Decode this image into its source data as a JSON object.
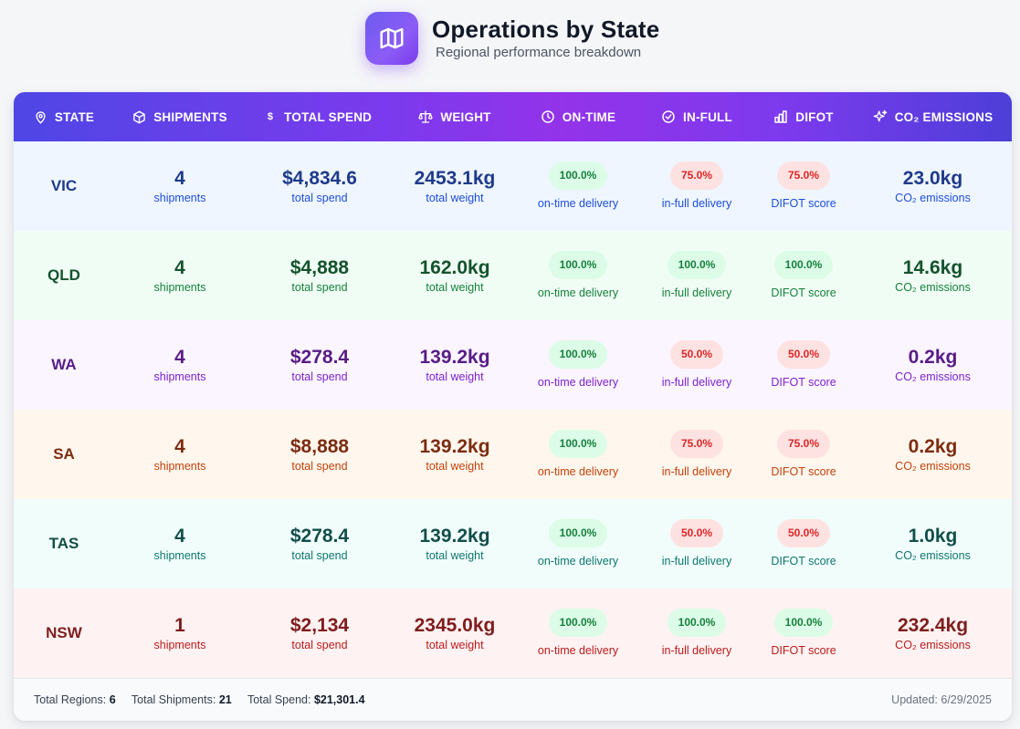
{
  "header": {
    "title": "Operations by State",
    "subtitle": "Regional performance breakdown",
    "logo_icon": "map-icon"
  },
  "columns": [
    {
      "label": "STATE",
      "icon": "map-pin-icon"
    },
    {
      "label": "SHIPMENTS",
      "icon": "package-icon"
    },
    {
      "label": "TOTAL SPEND",
      "icon": "dollar-icon"
    },
    {
      "label": "WEIGHT",
      "icon": "scale-icon"
    },
    {
      "label": "ON-TIME",
      "icon": "clock-icon"
    },
    {
      "label": "IN-FULL",
      "icon": "check-circle-icon"
    },
    {
      "label": "DIFOT",
      "icon": "bar-chart-icon"
    },
    {
      "label": "CO₂ EMISSIONS",
      "icon": "sparkles-icon"
    }
  ],
  "sublabels": {
    "shipments": "shipments",
    "spend": "total spend",
    "weight": "total weight",
    "ontime": "on-time delivery",
    "infull": "in-full delivery",
    "difot": "DIFOT score",
    "co2": "CO₂ emissions"
  },
  "rows": [
    {
      "state": "VIC",
      "shipments": "4",
      "spend": "$4,834.6",
      "weight": "2453.1kg",
      "ontime": "100.0%",
      "ontime_status": "good",
      "infull": "75.0%",
      "infull_status": "bad",
      "difot": "75.0%",
      "difot_status": "bad",
      "co2": "23.0kg",
      "bg": "#eff6ff",
      "strong": "#1e3a8a",
      "soft": "#1d4ed8"
    },
    {
      "state": "QLD",
      "shipments": "4",
      "spend": "$4,888",
      "weight": "162.0kg",
      "ontime": "100.0%",
      "ontime_status": "good",
      "infull": "100.0%",
      "infull_status": "good",
      "difot": "100.0%",
      "difot_status": "good",
      "co2": "14.6kg",
      "bg": "#f0fdf4",
      "strong": "#14532d",
      "soft": "#15803d"
    },
    {
      "state": "WA",
      "shipments": "4",
      "spend": "$278.4",
      "weight": "139.2kg",
      "ontime": "100.0%",
      "ontime_status": "good",
      "infull": "50.0%",
      "infull_status": "bad",
      "difot": "50.0%",
      "difot_status": "bad",
      "co2": "0.2kg",
      "bg": "#faf5ff",
      "strong": "#581c87",
      "soft": "#7e22ce"
    },
    {
      "state": "SA",
      "shipments": "4",
      "spend": "$8,888",
      "weight": "139.2kg",
      "ontime": "100.0%",
      "ontime_status": "good",
      "infull": "75.0%",
      "infull_status": "bad",
      "difot": "75.0%",
      "difot_status": "bad",
      "co2": "0.2kg",
      "bg": "#fff7ed",
      "strong": "#7c2d12",
      "soft": "#c2410c"
    },
    {
      "state": "TAS",
      "shipments": "4",
      "spend": "$278.4",
      "weight": "139.2kg",
      "ontime": "100.0%",
      "ontime_status": "good",
      "infull": "50.0%",
      "infull_status": "bad",
      "difot": "50.0%",
      "difot_status": "bad",
      "co2": "1.0kg",
      "bg": "#f0fdfa",
      "strong": "#134e4a",
      "soft": "#0f766e"
    },
    {
      "state": "NSW",
      "shipments": "1",
      "spend": "$2,134",
      "weight": "2345.0kg",
      "ontime": "100.0%",
      "ontime_status": "good",
      "infull": "100.0%",
      "infull_status": "good",
      "difot": "100.0%",
      "difot_status": "good",
      "co2": "232.4kg",
      "bg": "#fef2f2",
      "strong": "#7f1d1d",
      "soft": "#b91c1c"
    }
  ],
  "footer": {
    "regions_label": "Total Regions:",
    "regions_value": "6",
    "shipments_label": "Total Shipments:",
    "shipments_value": "21",
    "spend_label": "Total Spend:",
    "spend_value": "$21,301.4",
    "updated": "Updated: 6/29/2025"
  }
}
